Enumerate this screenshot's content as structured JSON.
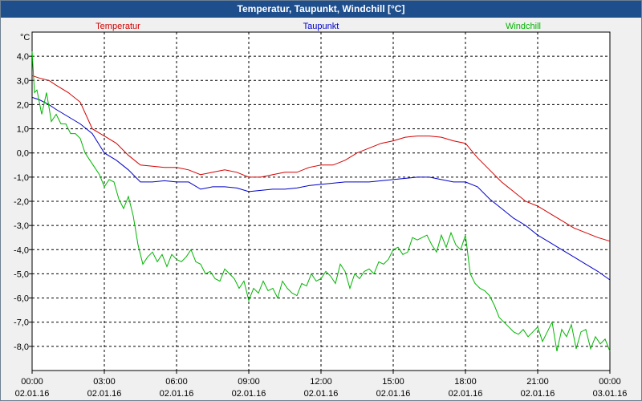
{
  "window": {
    "title": "Temperatur, Taupunkt, Windchill [°C]"
  },
  "chart_data": {
    "type": "line",
    "title": "Temperatur, Taupunkt, Windchill [°C]",
    "ylabel": "°C",
    "xlabel": "",
    "xlim": [
      0,
      24
    ],
    "ylim": [
      -9,
      5
    ],
    "grid": true,
    "y_ticks": [
      4,
      3,
      2,
      1,
      0,
      -1,
      -2,
      -3,
      -4,
      -5,
      -6,
      -7,
      -8
    ],
    "y_tick_labels": [
      "4,0",
      "3,0",
      "2,0",
      "1,0",
      "0,0",
      "-1,0",
      "-2,0",
      "-3,0",
      "-4,0",
      "-5,0",
      "-6,0",
      "-7,0",
      "-8,0"
    ],
    "x_ticks": [
      0,
      3,
      6,
      9,
      12,
      15,
      18,
      21,
      24
    ],
    "x_tick_times": [
      "00:00",
      "03:00",
      "06:00",
      "09:00",
      "12:00",
      "15:00",
      "18:00",
      "21:00",
      "00:00"
    ],
    "x_tick_dates": [
      "02.01.16",
      "02.01.16",
      "02.01.16",
      "02.01.16",
      "02.01.16",
      "02.01.16",
      "02.01.16",
      "02.01.16",
      "03.01.16"
    ],
    "legend": [
      {
        "name": "Temperatur",
        "color": "#d40000",
        "position": "top-left"
      },
      {
        "name": "Taupunkt",
        "color": "#0000c8",
        "position": "top-center"
      },
      {
        "name": "Windchill",
        "color": "#00b400",
        "position": "top-right"
      }
    ],
    "series": [
      {
        "name": "Temperatur",
        "color": "#d40000",
        "x": [
          0,
          0.3,
          0.7,
          1,
          1.5,
          2,
          2.5,
          3,
          3.5,
          4,
          4.5,
          5,
          5.5,
          6,
          6.5,
          7,
          7.5,
          8,
          8.5,
          9,
          9.5,
          10,
          10.5,
          11,
          11.5,
          12,
          12.5,
          13,
          13.5,
          14,
          14.5,
          15,
          15.5,
          16,
          16.5,
          17,
          17.5,
          18,
          18.5,
          19,
          19.5,
          20,
          20.5,
          21,
          21.5,
          22,
          22.5,
          23,
          23.5,
          24
        ],
        "y": [
          3.2,
          3.1,
          3.0,
          2.8,
          2.5,
          2.1,
          1.0,
          0.7,
          0.4,
          -0.1,
          -0.5,
          -0.55,
          -0.6,
          -0.6,
          -0.7,
          -0.9,
          -0.8,
          -0.7,
          -0.8,
          -1.0,
          -1.0,
          -0.9,
          -0.8,
          -0.8,
          -0.6,
          -0.5,
          -0.5,
          -0.3,
          0.0,
          0.2,
          0.4,
          0.5,
          0.65,
          0.7,
          0.7,
          0.65,
          0.5,
          0.4,
          -0.2,
          -0.7,
          -1.2,
          -1.6,
          -2.0,
          -2.2,
          -2.5,
          -2.8,
          -3.1,
          -3.3,
          -3.5,
          -3.65
        ]
      },
      {
        "name": "Taupunkt",
        "color": "#0000c8",
        "x": [
          0,
          0.3,
          0.7,
          1,
          1.5,
          2,
          2.5,
          3,
          3.5,
          4,
          4.5,
          5,
          5.5,
          6,
          6.5,
          7,
          7.5,
          8,
          8.5,
          9,
          9.5,
          10,
          10.5,
          11,
          11.5,
          12,
          12.5,
          13,
          13.5,
          14,
          14.5,
          15,
          15.5,
          16,
          16.5,
          17,
          17.5,
          18,
          18.5,
          19,
          19.5,
          20,
          20.5,
          21,
          21.5,
          22,
          22.5,
          23,
          23.5,
          24
        ],
        "y": [
          2.3,
          2.2,
          2.0,
          1.8,
          1.5,
          1.2,
          0.8,
          0.0,
          -0.3,
          -0.7,
          -1.2,
          -1.2,
          -1.15,
          -1.2,
          -1.2,
          -1.5,
          -1.4,
          -1.4,
          -1.45,
          -1.6,
          -1.55,
          -1.5,
          -1.5,
          -1.45,
          -1.35,
          -1.3,
          -1.25,
          -1.2,
          -1.2,
          -1.2,
          -1.15,
          -1.1,
          -1.05,
          -1.0,
          -1.0,
          -1.1,
          -1.2,
          -1.2,
          -1.4,
          -1.9,
          -2.3,
          -2.7,
          -3.0,
          -3.4,
          -3.7,
          -4.0,
          -4.3,
          -4.6,
          -4.9,
          -5.25
        ]
      },
      {
        "name": "Windchill",
        "color": "#00b400",
        "x": [
          0,
          0.1,
          0.2,
          0.4,
          0.6,
          0.8,
          1.0,
          1.2,
          1.4,
          1.6,
          1.8,
          2.0,
          2.2,
          2.4,
          2.6,
          2.8,
          3.0,
          3.2,
          3.4,
          3.6,
          3.8,
          4.0,
          4.2,
          4.4,
          4.6,
          4.8,
          5.0,
          5.2,
          5.4,
          5.6,
          5.8,
          6.0,
          6.2,
          6.4,
          6.6,
          6.8,
          7.0,
          7.2,
          7.4,
          7.6,
          7.8,
          8.0,
          8.2,
          8.4,
          8.6,
          8.8,
          9.0,
          9.2,
          9.4,
          9.6,
          9.8,
          10.0,
          10.2,
          10.4,
          10.6,
          10.8,
          11.0,
          11.2,
          11.4,
          11.6,
          11.8,
          12.0,
          12.2,
          12.4,
          12.6,
          12.8,
          13.0,
          13.2,
          13.4,
          13.6,
          13.8,
          14.0,
          14.2,
          14.4,
          14.6,
          14.8,
          15.0,
          15.2,
          15.4,
          15.6,
          15.8,
          16.0,
          16.2,
          16.4,
          16.6,
          16.8,
          17.0,
          17.2,
          17.4,
          17.6,
          17.8,
          18.0,
          18.2,
          18.4,
          18.6,
          18.8,
          19.0,
          19.2,
          19.4,
          19.6,
          19.8,
          20.0,
          20.2,
          20.4,
          20.6,
          20.8,
          21.0,
          21.2,
          21.4,
          21.6,
          21.8,
          22.0,
          22.2,
          22.4,
          22.6,
          22.8,
          23.0,
          23.2,
          23.4,
          23.6,
          23.8,
          24.0
        ],
        "y": [
          4.2,
          2.5,
          2.6,
          1.6,
          2.5,
          1.3,
          1.6,
          1.2,
          1.2,
          0.8,
          0.8,
          0.6,
          0.0,
          -0.3,
          -0.6,
          -0.9,
          -1.4,
          -1.1,
          -1.2,
          -1.9,
          -2.3,
          -1.8,
          -2.6,
          -3.8,
          -4.6,
          -4.3,
          -4.1,
          -4.5,
          -4.2,
          -4.7,
          -4.2,
          -4.4,
          -4.5,
          -4.3,
          -4.0,
          -4.5,
          -4.6,
          -5.0,
          -4.9,
          -5.2,
          -5.3,
          -4.8,
          -5.0,
          -5.2,
          -5.6,
          -5.3,
          -6.1,
          -5.6,
          -5.8,
          -5.3,
          -5.7,
          -5.6,
          -6.0,
          -5.3,
          -5.6,
          -5.8,
          -5.9,
          -5.4,
          -5.5,
          -5.0,
          -5.3,
          -5.2,
          -4.9,
          -5.1,
          -5.4,
          -4.6,
          -4.9,
          -5.6,
          -5.0,
          -5.2,
          -4.9,
          -4.8,
          -5.0,
          -4.5,
          -4.6,
          -4.4,
          -4.0,
          -3.9,
          -4.2,
          -4.1,
          -3.5,
          -3.6,
          -3.5,
          -3.4,
          -3.8,
          -4.1,
          -3.4,
          -3.9,
          -3.3,
          -3.8,
          -4.0,
          -3.4,
          -5.0,
          -5.4,
          -5.6,
          -5.7,
          -5.9,
          -6.3,
          -6.8,
          -7.0,
          -7.2,
          -7.4,
          -7.5,
          -7.3,
          -7.6,
          -7.4,
          -7.2,
          -7.8,
          -7.4,
          -7.0,
          -8.2,
          -7.3,
          -7.6,
          -7.1,
          -8.1,
          -7.4,
          -7.3,
          -8.1,
          -7.6,
          -7.9,
          -7.7,
          -8.2
        ]
      }
    ]
  }
}
